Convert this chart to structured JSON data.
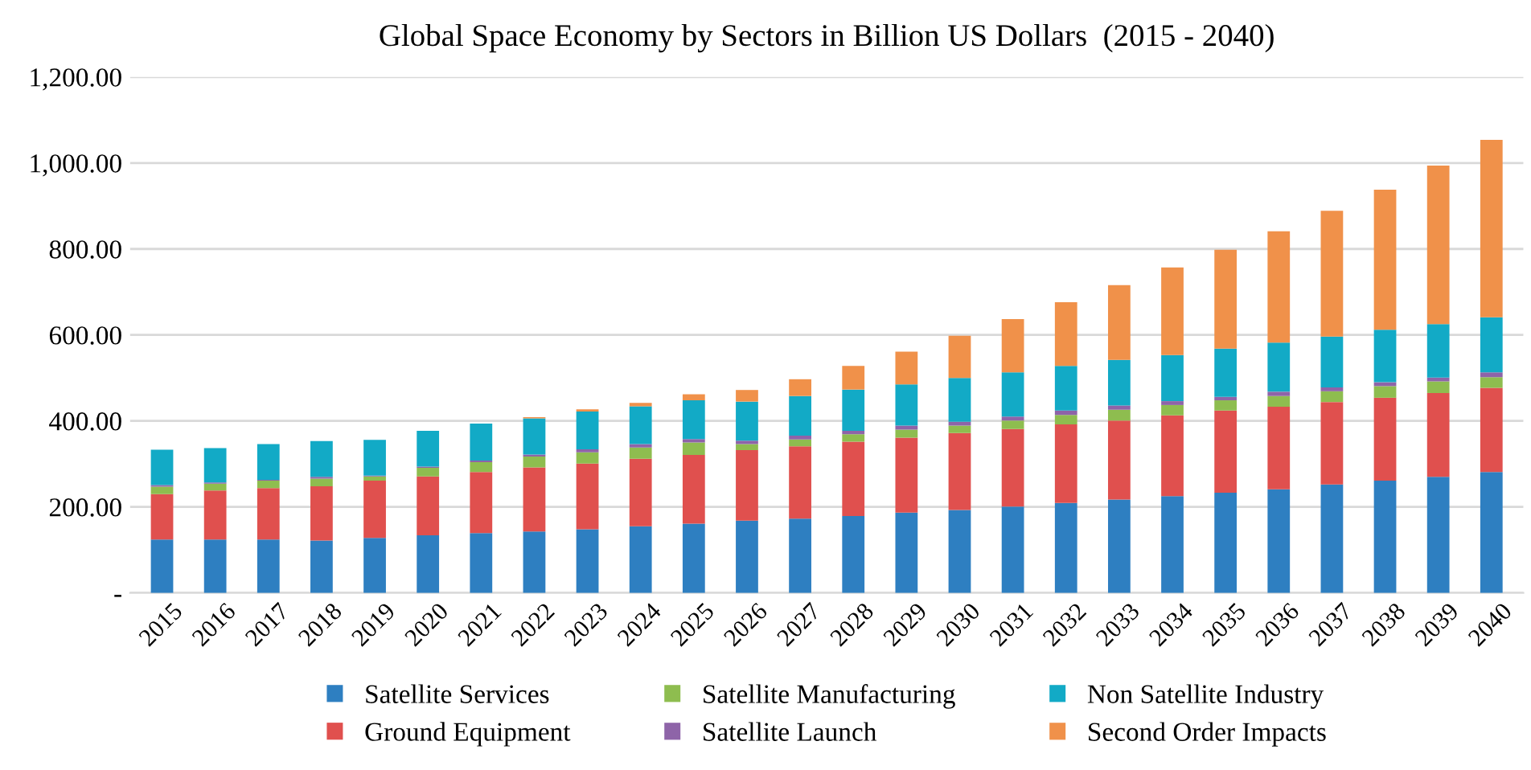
{
  "chart_data": {
    "type": "bar",
    "title": "Global Space Economy by Sectors in Billion US Dollars  (2015 - 2040)",
    "stacked": true,
    "grid": "y",
    "legend": "bottom",
    "categories": [
      "2015",
      "2016",
      "2017",
      "2018",
      "2019",
      "2020",
      "2021",
      "2022",
      "2023",
      "2024",
      "2025",
      "2026",
      "2027",
      "2028",
      "2029",
      "2030",
      "2031",
      "2032",
      "2033",
      "2034",
      "2035",
      "2036",
      "2037",
      "2038",
      "2039",
      "2040"
    ],
    "ylim": [
      0,
      1200
    ],
    "yticks": [
      {
        "value": 0,
        "label": "-"
      },
      {
        "value": 200,
        "label": "200.00"
      },
      {
        "value": 400,
        "label": "400.00"
      },
      {
        "value": 600,
        "label": "600.00"
      },
      {
        "value": 800,
        "label": "800.00"
      },
      {
        "value": 1000,
        "label": "1,000.00"
      },
      {
        "value": 1200,
        "label": "1,200.00"
      }
    ],
    "series": [
      {
        "name": "Satellite Services",
        "color": "#2e7fc1",
        "values": [
          124,
          124,
          124,
          122,
          128,
          134,
          139,
          143,
          148,
          155,
          161,
          168,
          173,
          179,
          187,
          193,
          201,
          209,
          217,
          225,
          233,
          241,
          252,
          261,
          270,
          281
        ]
      },
      {
        "name": "Ground Equipment",
        "color": "#e0504e",
        "values": [
          106,
          114,
          120,
          126,
          133,
          137,
          142,
          149,
          153,
          157,
          160,
          164,
          168,
          173,
          174,
          179,
          180,
          183,
          184,
          188,
          191,
          192,
          192,
          193,
          195,
          196
        ]
      },
      {
        "name": "Satellite Manufacturing",
        "color": "#8ebd4f",
        "values": [
          17,
          16,
          17,
          18,
          10,
          20,
          23,
          25,
          26,
          26,
          29,
          14,
          16,
          17,
          19,
          17,
          20,
          22,
          25,
          24,
          24,
          25,
          25,
          27,
          27,
          25
        ]
      },
      {
        "name": "Satellite Launch",
        "color": "#8e64a8",
        "values": [
          4,
          3,
          2,
          4,
          2,
          3,
          4,
          5,
          7,
          8,
          8,
          8,
          9,
          8,
          9,
          9,
          9,
          10,
          10,
          9,
          8,
          10,
          9,
          9,
          9,
          11
        ]
      },
      {
        "name": "Non Satellite Industry",
        "color": "#12aac6",
        "values": [
          82,
          80,
          83,
          83,
          83,
          83,
          86,
          84,
          88,
          88,
          90,
          91,
          92,
          96,
          96,
          102,
          103,
          104,
          106,
          107,
          112,
          114,
          118,
          122,
          124,
          128
        ]
      },
      {
        "name": "Second Order Impacts",
        "color": "#f0914a",
        "values": [
          0,
          0,
          0,
          0,
          0,
          0,
          0,
          3,
          5,
          8,
          14,
          27,
          39,
          55,
          76,
          98,
          124,
          148,
          174,
          204,
          230,
          259,
          293,
          326,
          369,
          413
        ]
      }
    ]
  }
}
